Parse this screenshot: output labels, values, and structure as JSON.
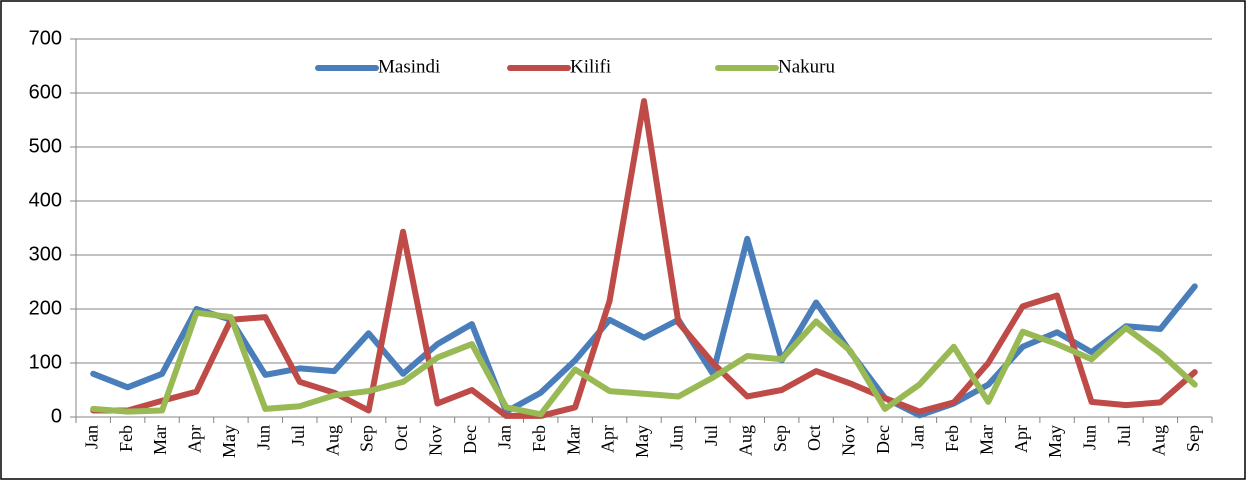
{
  "chart_data": {
    "type": "line",
    "categories": [
      "Jan",
      "Feb",
      "Mar",
      "Apr",
      "May",
      "Jun",
      "Jul",
      "Aug",
      "Sep",
      "Oct",
      "Nov",
      "Dec",
      "Jan",
      "Feb",
      "Mar",
      "Apr",
      "May",
      "Jun",
      "Jul",
      "Aug",
      "Sep",
      "Oct",
      "Nov",
      "Dec",
      "Jan",
      "Feb",
      "Mar",
      "Apr",
      "May",
      "Jun",
      "Jul",
      "Aug",
      "Sep"
    ],
    "series": [
      {
        "name": "Masindi",
        "color": "#4a7ebb",
        "values": [
          80,
          55,
          80,
          200,
          180,
          78,
          90,
          85,
          155,
          80,
          135,
          172,
          10,
          45,
          105,
          180,
          147,
          180,
          80,
          330,
          105,
          212,
          120,
          35,
          3,
          25,
          60,
          130,
          157,
          120,
          168,
          163,
          242
        ]
      },
      {
        "name": "Kilifi",
        "color": "#be4b48",
        "values": [
          12,
          12,
          30,
          47,
          180,
          185,
          65,
          45,
          12,
          343,
          25,
          50,
          2,
          2,
          18,
          215,
          585,
          175,
          100,
          38,
          50,
          85,
          62,
          35,
          10,
          27,
          100,
          205,
          225,
          28,
          22,
          27,
          83
        ]
      },
      {
        "name": "Nakuru",
        "color": "#98b954",
        "values": [
          15,
          10,
          12,
          193,
          185,
          15,
          20,
          40,
          48,
          65,
          110,
          135,
          18,
          5,
          88,
          48,
          43,
          38,
          73,
          113,
          107,
          177,
          122,
          15,
          60,
          130,
          28,
          158,
          135,
          107,
          165,
          118,
          60
        ]
      }
    ],
    "ylim": [
      0,
      700
    ],
    "yticks": [
      0,
      100,
      200,
      300,
      400,
      500,
      600,
      700
    ],
    "grid": true,
    "legend": "top"
  }
}
